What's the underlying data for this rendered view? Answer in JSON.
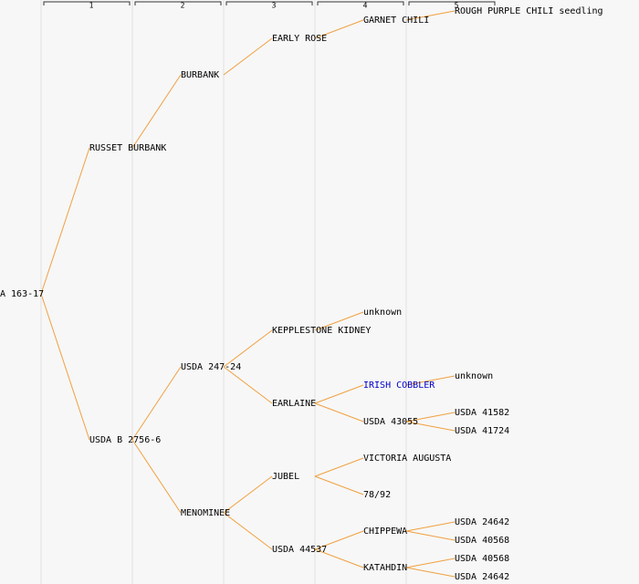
{
  "generations": [
    "1",
    "2",
    "3",
    "4",
    "5"
  ],
  "nodes": [
    "A 163-17",
    "RUSSET BURBANK",
    "USDA B 2756-6",
    "BURBANK",
    "USDA 247-24",
    "MENOMINEE",
    "EARLY ROSE",
    "KEPPLESTONE KIDNEY",
    "EARLAINE",
    "JUBEL",
    "USDA 44537",
    "GARNET CHILI",
    "unknown",
    "IRISH COBBLER",
    "USDA 43055",
    "VICTORIA AUGUSTA",
    "78/92",
    "CHIPPEWA",
    "KATAHDIN",
    "ROUGH PURPLE CHILI seedling",
    "unknown",
    "USDA 41582",
    "USDA 41724",
    "USDA 24642",
    "USDA 40568",
    "USDA 40568",
    "USDA 24642"
  ]
}
